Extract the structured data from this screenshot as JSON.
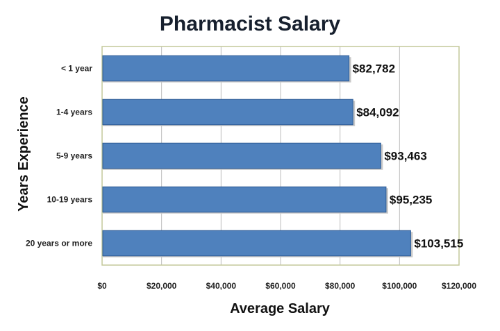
{
  "chart_data": {
    "type": "bar",
    "orientation": "horizontal",
    "title": "Pharmacist Salary",
    "xlabel": "Average Salary",
    "ylabel": "Years Experience",
    "categories": [
      "< 1 year",
      "1-4 years",
      "5-9 years",
      "10-19 years",
      "20 years or more"
    ],
    "values": [
      82782,
      84092,
      93463,
      95235,
      103515
    ],
    "data_labels": [
      "$82,782",
      "$84,092",
      "$93,463",
      "$95,235",
      "$103,515"
    ],
    "xlim": [
      0,
      120000
    ],
    "x_ticks": [
      0,
      20000,
      40000,
      60000,
      80000,
      100000,
      120000
    ],
    "x_tick_labels": [
      "$0",
      "$20,000",
      "$40,000",
      "$60,000",
      "$80,000",
      "$100,000",
      "$120,000"
    ],
    "grid": "vertical",
    "legend": "none",
    "colors": {
      "bar": "#4f81bd",
      "bar_edge": "#2c5a94",
      "plot_border": "#c4c99a",
      "grid": "#bdbdbd"
    }
  }
}
